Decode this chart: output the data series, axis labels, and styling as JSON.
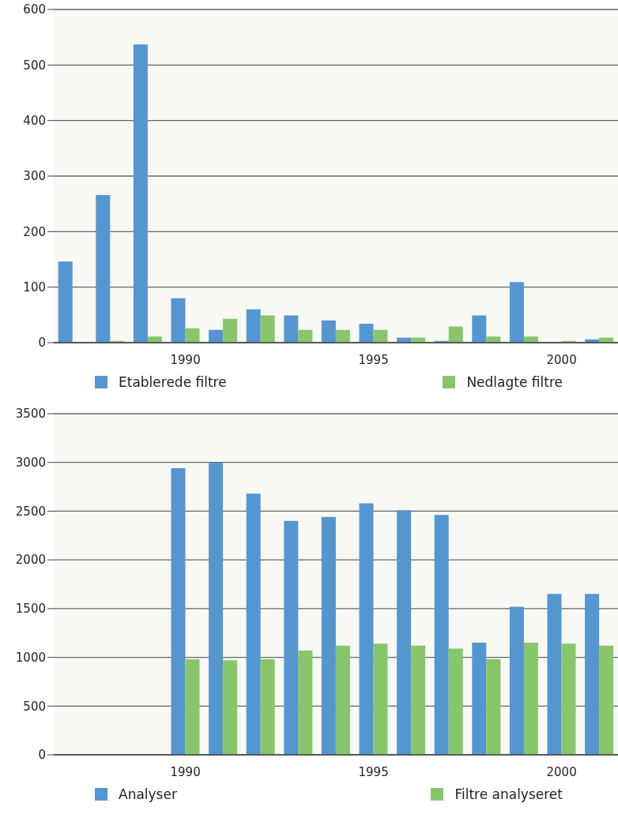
{
  "chart_data": [
    {
      "type": "bar",
      "categories": [
        null,
        null,
        null,
        "1990",
        null,
        null,
        null,
        null,
        "1995",
        null,
        null,
        null,
        null,
        "2000",
        null
      ],
      "series": [
        {
          "name": "Etablerede filtre",
          "color": "#5596d0",
          "values": [
            146,
            266,
            537,
            80,
            23,
            60,
            49,
            40,
            34,
            9,
            3,
            49,
            109,
            null,
            6
          ]
        },
        {
          "name": "Nedlagte filtre",
          "color": "#88c66c",
          "values": [
            null,
            3,
            11,
            26,
            43,
            49,
            23,
            23,
            23,
            9,
            29,
            11,
            11,
            3,
            9
          ]
        }
      ],
      "ylim": [
        0,
        600
      ],
      "yticks": [
        0,
        100,
        200,
        300,
        400,
        500,
        600
      ],
      "grid": "y",
      "legend": "bottom"
    },
    {
      "type": "bar",
      "categories": [
        null,
        null,
        null,
        "1990",
        null,
        null,
        null,
        null,
        "1995",
        null,
        null,
        null,
        null,
        "2000",
        null
      ],
      "series": [
        {
          "name": "Analyser",
          "color": "#5596d0",
          "values": [
            null,
            null,
            null,
            2940,
            3000,
            2680,
            2400,
            2440,
            2580,
            2510,
            2460,
            1150,
            1520,
            1650,
            1650
          ]
        },
        {
          "name": "Filtre analyseret",
          "color": "#88c66c",
          "values": [
            null,
            null,
            null,
            980,
            970,
            980,
            1070,
            1120,
            1140,
            1120,
            1090,
            980,
            1150,
            1140,
            1120
          ]
        }
      ],
      "ylim": [
        0,
        3500
      ],
      "yticks": [
        0,
        500,
        1000,
        1500,
        2000,
        2500,
        3000,
        3500
      ],
      "grid": "y",
      "legend": "bottom"
    }
  ]
}
